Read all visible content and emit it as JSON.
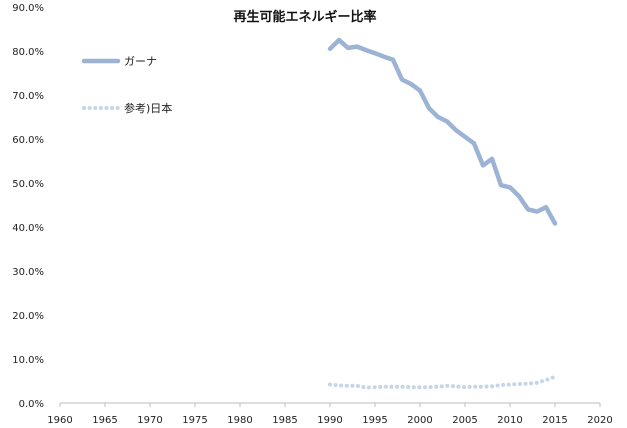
{
  "chart_data": {
    "type": "line",
    "title": "再生可能エネルギー比率",
    "xlabel": "",
    "ylabel": "",
    "xlim": [
      1960,
      2020
    ],
    "ylim": [
      0,
      90
    ],
    "x_ticks": [
      "1960",
      "1965",
      "1970",
      "1975",
      "1980",
      "1985",
      "1990",
      "1995",
      "2000",
      "2005",
      "2010",
      "2015",
      "2020"
    ],
    "y_ticks": [
      "0.0%",
      "10.0%",
      "20.0%",
      "30.0%",
      "40.0%",
      "50.0%",
      "60.0%",
      "70.0%",
      "80.0%",
      "90.0%"
    ],
    "grid": false,
    "legend_placement": "top-left",
    "x": [
      1990,
      1991,
      1992,
      1993,
      1994,
      1995,
      1996,
      1997,
      1998,
      1999,
      2000,
      2001,
      2002,
      2003,
      2004,
      2005,
      2006,
      2007,
      2008,
      2009,
      2010,
      2011,
      2012,
      2013,
      2014,
      2015
    ],
    "series": [
      {
        "name": "ガーナ",
        "color": "#9db3d6",
        "style": "solid",
        "values": [
          80.5,
          82.5,
          80.7,
          81.0,
          80.2,
          79.5,
          78.7,
          78.0,
          73.5,
          72.5,
          71.0,
          67.0,
          65.0,
          64.0,
          62.0,
          60.5,
          59.0,
          54.0,
          55.5,
          49.5,
          49.0,
          47.0,
          44.0,
          43.5,
          44.5,
          40.8
        ]
      },
      {
        "name": "参考)日本",
        "color": "#c6d6e6",
        "style": "dotted",
        "values": [
          4.2,
          4.0,
          3.9,
          3.9,
          3.5,
          3.6,
          3.7,
          3.7,
          3.7,
          3.6,
          3.6,
          3.6,
          3.7,
          3.9,
          3.8,
          3.6,
          3.7,
          3.7,
          3.8,
          4.1,
          4.2,
          4.3,
          4.4,
          4.6,
          5.2,
          6.0
        ]
      }
    ]
  }
}
